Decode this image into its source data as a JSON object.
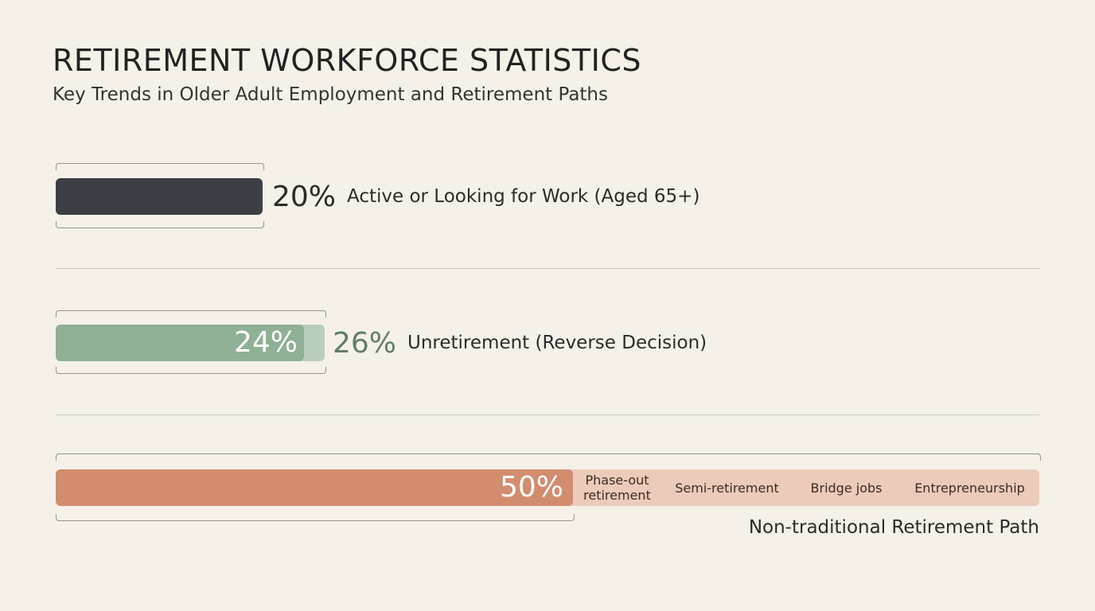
{
  "header": {
    "title": "RETIREMENT WORKFORCE STATISTICS",
    "subtitle": "Key Trends in Older Adult Employment and Retirement Paths"
  },
  "rows": [
    {
      "values": [
        20
      ],
      "value_labels": [
        "20%"
      ],
      "label": "Active or Looking for Work (Aged 65+)",
      "colors": [
        "#3b3f44"
      ]
    },
    {
      "values": [
        24,
        26
      ],
      "value_labels": [
        "24%",
        "26%"
      ],
      "label": "Unretirement (Reverse Decision)",
      "colors": [
        "#8fb095",
        "#b9ceba"
      ]
    },
    {
      "values": [
        50
      ],
      "value_labels": [
        "50%"
      ],
      "label": "Non-traditional Retirement Path",
      "colors": [
        "#d28c6e"
      ],
      "paths": [
        "Phase-out retirement",
        "Semi-retirement",
        "Bridge jobs",
        "Entrepreneurship"
      ]
    }
  ]
}
